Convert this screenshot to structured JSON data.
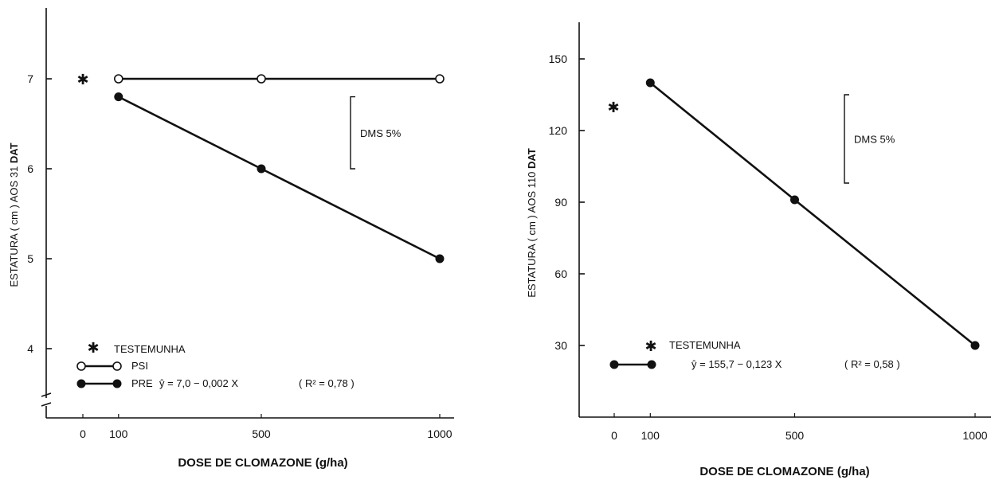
{
  "chart_data": [
    {
      "type": "line",
      "xlabel": "DOSE DE CLOMAZONE (g/ha)",
      "ylabel_prefix": "ESTATURA ( cm ) AOS 31 ",
      "ylabel_bold": "DAT",
      "x_ticks": [
        "0",
        "100",
        "500",
        "1000"
      ],
      "y_ticks": [
        "4",
        "5",
        "6",
        "7"
      ],
      "xlim": [
        0,
        1000
      ],
      "ylim": [
        3.4,
        7.7
      ],
      "broken_y_axis": true,
      "control": {
        "name": "TESTEMUNHA",
        "x": 0,
        "y": 7.0
      },
      "series": [
        {
          "name": "PSI",
          "marker": "open-circle",
          "x": [
            100,
            500,
            1000
          ],
          "y": [
            7.0,
            7.0,
            7.0
          ]
        },
        {
          "name": "PRE",
          "marker": "filled-circle",
          "x": [
            100,
            500,
            1000
          ],
          "y": [
            6.8,
            6.0,
            5.0
          ]
        }
      ],
      "equation": "ŷ = 7,0 − 0,002 X",
      "r2": "( R² = 0,78 )",
      "dms_label": "DMS 5%",
      "dms_range": [
        6.0,
        6.8
      ]
    },
    {
      "type": "line",
      "xlabel": "DOSE DE CLOMAZONE (g/ha)",
      "ylabel_prefix": "ESTATURA ( cm ) AOS 110 ",
      "ylabel_bold": "DAT",
      "x_ticks": [
        "0",
        "100",
        "500",
        "1000"
      ],
      "y_ticks": [
        "30",
        "60",
        "90",
        "120",
        "150"
      ],
      "xlim": [
        0,
        1000
      ],
      "ylim": [
        0,
        160
      ],
      "broken_y_axis": false,
      "control": {
        "name": "TESTEMUNHA",
        "x": 0,
        "y": 130
      },
      "series": [
        {
          "name": "",
          "marker": "filled-circle",
          "x": [
            100,
            500,
            1000
          ],
          "y": [
            140,
            91,
            30
          ]
        }
      ],
      "equation": "ŷ = 155,7 − 0,123 X",
      "r2": "( R² = 0,58 )",
      "dms_label": "DMS 5%",
      "dms_range": [
        98,
        135
      ]
    }
  ]
}
